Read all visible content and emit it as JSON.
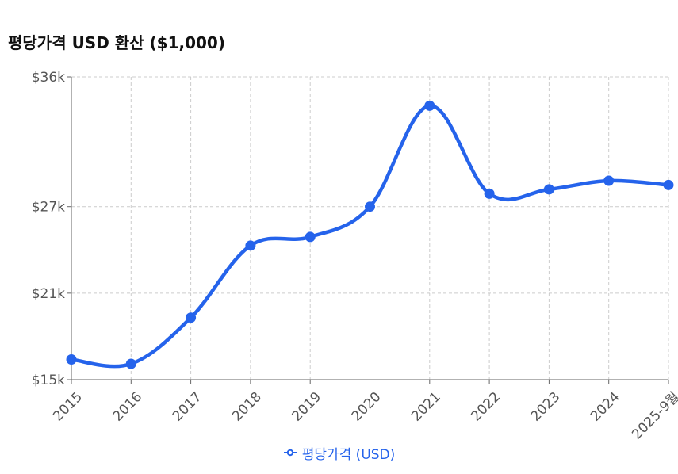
{
  "title": "평당가격 USD 환산 ($1,000)",
  "colors": {
    "line": "#2563eb",
    "grid": "#cccccc",
    "axis": "#666666",
    "tick_text": "#555555"
  },
  "chart_data": {
    "type": "line",
    "categories": [
      "2015",
      "2016",
      "2017",
      "2018",
      "2019",
      "2020",
      "2021",
      "2022",
      "2023",
      "2024",
      "2025-9월"
    ],
    "series": [
      {
        "name": "평당가격 (USD)",
        "values": [
          16.4,
          16.1,
          19.3,
          24.3,
          24.9,
          27.0,
          34.0,
          27.9,
          28.2,
          28.8,
          28.5
        ]
      }
    ],
    "ylim": [
      15,
      36
    ],
    "yticks": [
      {
        "value": 15,
        "label": "$15k"
      },
      {
        "value": 21,
        "label": "$21k"
      },
      {
        "value": 27,
        "label": "$27k"
      },
      {
        "value": 36,
        "label": "$36k"
      }
    ],
    "grid": true,
    "smooth": true,
    "legend_position": "bottom-center"
  }
}
